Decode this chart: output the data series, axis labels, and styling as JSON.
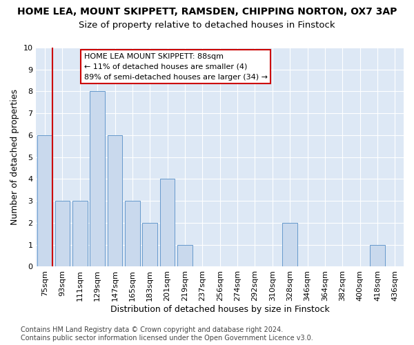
{
  "title1": "HOME LEA, MOUNT SKIPPETT, RAMSDEN, CHIPPING NORTON, OX7 3AP",
  "title2": "Size of property relative to detached houses in Finstock",
  "xlabel": "Distribution of detached houses by size in Finstock",
  "ylabel": "Number of detached properties",
  "categories": [
    "75sqm",
    "93sqm",
    "111sqm",
    "129sqm",
    "147sqm",
    "165sqm",
    "183sqm",
    "201sqm",
    "219sqm",
    "237sqm",
    "256sqm",
    "274sqm",
    "292sqm",
    "310sqm",
    "328sqm",
    "346sqm",
    "364sqm",
    "382sqm",
    "400sqm",
    "418sqm",
    "436sqm"
  ],
  "values": [
    6,
    3,
    3,
    8,
    6,
    3,
    2,
    4,
    1,
    0,
    0,
    0,
    0,
    0,
    2,
    0,
    0,
    0,
    0,
    1,
    0
  ],
  "bar_color": "#c9d9ed",
  "bar_edge_color": "#6699cc",
  "highlight_line_color": "#cc0000",
  "annotation_text": "HOME LEA MOUNT SKIPPETT: 88sqm\n← 11% of detached houses are smaller (4)\n89% of semi-detached houses are larger (34) →",
  "annotation_box_color": "#ffffff",
  "annotation_box_edge_color": "#cc0000",
  "ylim": [
    0,
    10
  ],
  "yticks": [
    0,
    1,
    2,
    3,
    4,
    5,
    6,
    7,
    8,
    9,
    10
  ],
  "footer_text": "Contains HM Land Registry data © Crown copyright and database right 2024.\nContains public sector information licensed under the Open Government Licence v3.0.",
  "bg_color": "#ffffff",
  "plot_bg_color": "#dde8f5",
  "grid_color": "#ffffff",
  "title1_fontsize": 10,
  "title2_fontsize": 9.5,
  "xlabel_fontsize": 9,
  "ylabel_fontsize": 9,
  "tick_fontsize": 8,
  "footer_fontsize": 7,
  "annotation_fontsize": 8
}
